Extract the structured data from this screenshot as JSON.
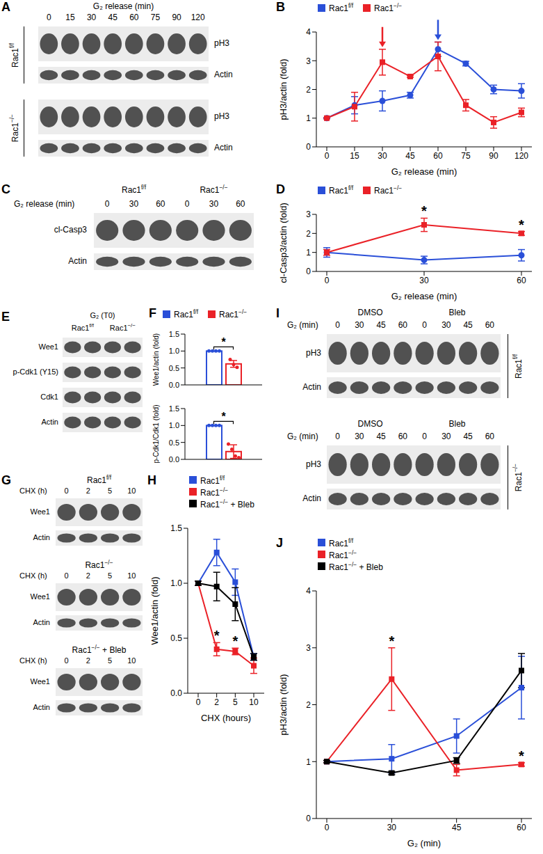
{
  "chart_data": [
    {
      "panel": "B",
      "type": "line",
      "x_label": "G₂ release (min)",
      "y_label": "pH3/actin (fold)",
      "categories": [
        "0",
        "15",
        "30",
        "45",
        "60",
        "75",
        "90",
        "120"
      ],
      "ylim": [
        0,
        4
      ],
      "yticks": [
        0,
        1,
        2,
        3,
        4
      ],
      "legend": "top",
      "series": [
        {
          "name": "Rac1f/f",
          "color": "#2a4fd8",
          "marker": "circle",
          "values": [
            1,
            1.45,
            1.6,
            1.8,
            3.4,
            2.9,
            2.0,
            1.95
          ],
          "errors": [
            0.02,
            0.3,
            0.35,
            0.1,
            0.25,
            0.08,
            0.15,
            0.25
          ]
        },
        {
          "name": "Rac1−/−",
          "color": "#ea2127",
          "marker": "square",
          "values": [
            1,
            1.4,
            2.95,
            2.45,
            3.15,
            1.45,
            0.85,
            1.2
          ],
          "errors": [
            0.02,
            0.5,
            0.45,
            0.03,
            0.5,
            0.2,
            0.2,
            0.15
          ]
        }
      ],
      "arrows": [
        {
          "x": "30",
          "series": "Rac1−/−"
        },
        {
          "x": "60",
          "series": "Rac1f/f"
        }
      ]
    },
    {
      "panel": "D",
      "type": "line",
      "x_label": "G₂ release (min)",
      "y_label": "cl-Casp3/actin (fold)",
      "categories": [
        "0",
        "30",
        "60"
      ],
      "ylim": [
        0,
        3
      ],
      "yticks": [
        0,
        1,
        2,
        3
      ],
      "legend": "top",
      "series": [
        {
          "name": "Rac1f/f",
          "color": "#2a4fd8",
          "marker": "circle",
          "values": [
            1,
            0.6,
            0.85
          ],
          "errors": [
            0.25,
            0.2,
            0.3
          ]
        },
        {
          "name": "Rac1−/−",
          "color": "#ea2127",
          "marker": "square",
          "values": [
            1,
            2.45,
            2.0
          ],
          "errors": [
            0.15,
            0.35,
            0.1
          ]
        }
      ],
      "annotations": [
        {
          "x": "30",
          "text": "*",
          "series": "Rac1−/−"
        },
        {
          "x": "60",
          "text": "*",
          "series": "Rac1−/−"
        }
      ]
    },
    {
      "panel": "F",
      "type": "bar",
      "y_label": "Wee1/actin (fold)",
      "categories": [
        null
      ],
      "ylim": [
        0,
        1.5
      ],
      "yticks": [
        {
          "value": 0,
          "label": "0.0"
        },
        {
          "value": 0.5,
          "label": "0.5"
        },
        {
          "value": 1,
          "label": "1.0"
        },
        {
          "value": 1.5,
          "label": "1.5"
        }
      ],
      "legend": "top",
      "series": [
        {
          "name": "Rac1f/f",
          "color": "#2a4fd8",
          "values": [
            1.0
          ],
          "errors": [
            0
          ],
          "points": [
            [
              1,
              1,
              1,
              1
            ]
          ]
        },
        {
          "name": "Rac1−/−",
          "color": "#ea2127",
          "values": [
            0.62
          ],
          "errors": [
            0.1
          ],
          "points": [
            [
              0.75,
              0.6,
              0.52
            ]
          ]
        }
      ],
      "annotations": [
        {
          "text": "*"
        }
      ]
    },
    {
      "type": "bar",
      "y_label": "p-Cdk1/Cdk1 (fold)",
      "categories": [
        null
      ],
      "ylim": [
        0,
        1.5
      ],
      "yticks": [
        {
          "value": 0,
          "label": "0.0"
        },
        {
          "value": 0.5,
          "label": "0.5"
        },
        {
          "value": 1,
          "label": "1.0"
        },
        {
          "value": 1.5,
          "label": "1.5"
        }
      ],
      "series": [
        {
          "color": "#2a4fd8",
          "values": [
            1.0
          ],
          "errors": [
            0
          ],
          "points": [
            [
              1,
              1,
              1,
              1
            ]
          ]
        },
        {
          "color": "#ea2127",
          "values": [
            0.23
          ],
          "errors": [
            0.2
          ],
          "points": [
            [
              0.45,
              0.3,
              0.1,
              0.05
            ]
          ]
        }
      ],
      "annotations": [
        {
          "text": "*"
        }
      ]
    },
    {
      "panel": "H",
      "type": "line",
      "x_label": "CHX (hours)",
      "y_label": "Wee1/actin (fold)",
      "categories": [
        "0",
        "2",
        "5",
        "10"
      ],
      "ylim": [
        0,
        1.5
      ],
      "yticks": [
        {
          "value": 0,
          "label": "0.0"
        },
        {
          "value": 0.5,
          "label": "0.5"
        },
        {
          "value": 1,
          "label": "1.0"
        },
        {
          "value": 1.5,
          "label": "1.5"
        }
      ],
      "legend": "top",
      "series": [
        {
          "name": "Rac1f/f",
          "color": "#2a4fd8",
          "marker": "square",
          "values": [
            1.0,
            1.28,
            1.01,
            0.33
          ],
          "errors": [
            0.02,
            0.12,
            0.12,
            0.03
          ]
        },
        {
          "name": "Rac1−/−",
          "color": "#ea2127",
          "marker": "square",
          "values": [
            1.0,
            0.4,
            0.38,
            0.25
          ],
          "errors": [
            0.02,
            0.06,
            0.03,
            0.07
          ]
        },
        {
          "name": "Rac1−/− + Bleb",
          "color": "#000000",
          "marker": "square",
          "values": [
            1.0,
            0.97,
            0.81,
            0.33
          ],
          "errors": [
            0.02,
            0.13,
            0.15,
            0.03
          ]
        }
      ],
      "annotations": [
        {
          "x": "2",
          "text": "*",
          "series": "Rac1−/−"
        },
        {
          "x": "5",
          "text": "*",
          "series": "Rac1−/−"
        }
      ]
    },
    {
      "panel": "J",
      "type": "line",
      "x_label": "G₂ (min)",
      "y_label": "pH3/actin (fold)",
      "categories": [
        "0",
        "30",
        "45",
        "60"
      ],
      "ylim": [
        0,
        4
      ],
      "yticks": [
        0,
        1,
        2,
        3,
        4
      ],
      "legend": "top",
      "series": [
        {
          "name": "Rac1f/f",
          "color": "#2a4fd8",
          "marker": "square",
          "values": [
            1,
            1.05,
            1.45,
            2.3
          ],
          "errors": [
            0.02,
            0.25,
            0.3,
            0.55
          ]
        },
        {
          "name": "Rac1−/−",
          "color": "#ea2127",
          "marker": "square",
          "values": [
            1,
            2.45,
            0.85,
            0.95
          ],
          "errors": [
            0.02,
            0.55,
            0.1,
            0.03
          ]
        },
        {
          "name": "Rac1−/− + Bleb",
          "color": "#000000",
          "marker": "square",
          "values": [
            1,
            0.8,
            1.02,
            2.6
          ],
          "errors": [
            0.02,
            0.03,
            0.05,
            0.3
          ]
        }
      ],
      "annotations": [
        {
          "x": "30",
          "text": "*",
          "series": "Rac1−/−"
        },
        {
          "x": "60",
          "text": "*",
          "series": "Rac1−/−"
        }
      ]
    }
  ],
  "blots": [
    {
      "panel": "A",
      "x_label": "G₂ release (min)",
      "lanes": [
        "0",
        "15",
        "30",
        "45",
        "60",
        "75",
        "90",
        "120"
      ],
      "groups": [
        {
          "name": "Rac1f/f",
          "rows": [
            "pH3",
            "Actin"
          ]
        },
        {
          "name": "Rac1−/−",
          "rows": [
            "pH3",
            "Actin"
          ]
        }
      ]
    },
    {
      "panel": "C",
      "x_label": "G₂ release (min)",
      "groups": [
        {
          "name": "Rac1f/f",
          "lanes": [
            "0",
            "30",
            "60"
          ]
        },
        {
          "name": "Rac1−/−",
          "lanes": [
            "0",
            "30",
            "60"
          ]
        }
      ],
      "rows": [
        "cl-Casp3",
        "Actin"
      ]
    },
    {
      "panel": "E",
      "title": "G₂ (T0)",
      "groups": [
        {
          "name": "Rac1f/f",
          "lanes": 2
        },
        {
          "name": "Rac1−/−",
          "lanes": 2
        }
      ],
      "rows": [
        "Wee1",
        "p-Cdk1 (Y15)",
        "Cdk1",
        "Actin"
      ]
    },
    {
      "panel": "G",
      "x_label": "CHX (h)",
      "lanes": [
        "0",
        "2",
        "5",
        "10"
      ],
      "groups": [
        {
          "name": "Rac1f/f",
          "rows": [
            "Wee1",
            "Actin"
          ]
        },
        {
          "name": "Rac1−/−",
          "rows": [
            "Wee1",
            "Actin"
          ]
        },
        {
          "name": "Rac1−/− + Bleb",
          "rows": [
            "Wee1",
            "Actin"
          ]
        }
      ]
    },
    {
      "panel": "I",
      "x_label": "G₂ (min)",
      "treatments": [
        "DMSO",
        "Bleb"
      ],
      "lanes": [
        "0",
        "30",
        "45",
        "60"
      ],
      "groups": [
        {
          "name": "Rac1f/f",
          "rows": [
            "pH3",
            "Actin"
          ]
        },
        {
          "name": "Rac1−/−",
          "rows": [
            "pH3",
            "Actin"
          ]
        }
      ]
    }
  ]
}
